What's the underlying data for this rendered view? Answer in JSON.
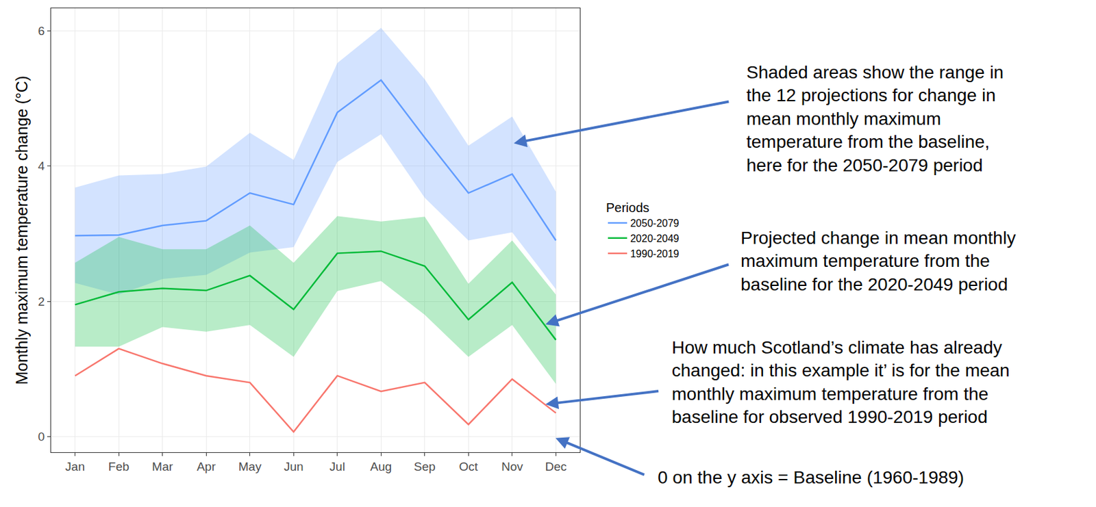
{
  "chart_data": {
    "type": "line",
    "y_label": "Monthly maximum temperature change (°C)",
    "legend_title": "Periods",
    "categories": [
      "Jan",
      "Feb",
      "Mar",
      "Apr",
      "May",
      "Jun",
      "Jul",
      "Aug",
      "Sep",
      "Oct",
      "Nov",
      "Dec"
    ],
    "ylim": [
      -0.23,
      6.33
    ],
    "yticks": [
      0,
      2,
      4,
      6
    ],
    "grid": true,
    "legend": "right",
    "series": [
      {
        "name": "1990-2019",
        "color": "#F8766D",
        "values": [
          0.9,
          1.3,
          1.08,
          0.9,
          0.8,
          0.07,
          0.9,
          0.67,
          0.8,
          0.18,
          0.85,
          0.35
        ]
      },
      {
        "name": "2020-2049",
        "color": "#00BA38",
        "values": [
          1.95,
          2.14,
          2.19,
          2.16,
          2.38,
          1.88,
          2.71,
          2.74,
          2.52,
          1.73,
          2.28,
          1.43
        ],
        "low": [
          1.33,
          1.33,
          1.62,
          1.55,
          1.65,
          1.18,
          2.15,
          2.3,
          1.8,
          1.18,
          1.65,
          0.78
        ],
        "high": [
          2.57,
          2.95,
          2.77,
          2.77,
          3.12,
          2.57,
          3.26,
          3.18,
          3.25,
          2.26,
          2.9,
          2.1
        ]
      },
      {
        "name": "2050-2079",
        "color": "#619CFF",
        "values": [
          2.97,
          2.98,
          3.12,
          3.19,
          3.6,
          3.43,
          4.79,
          5.27,
          4.42,
          3.6,
          3.88,
          2.9
        ],
        "low": [
          2.27,
          2.1,
          2.33,
          2.39,
          2.72,
          2.8,
          4.06,
          4.47,
          3.53,
          2.9,
          3.02,
          2.18
        ],
        "high": [
          3.68,
          3.86,
          3.88,
          3.99,
          4.49,
          4.09,
          5.52,
          6.04,
          5.28,
          4.3,
          4.73,
          3.62
        ]
      }
    ],
    "annotations": [
      {
        "text": [
          "Shaded areas show the range in",
          "the 12 projections for change in",
          "mean monthly maximum",
          "temperature from the baseline,",
          "here for the 2050-2079 period"
        ]
      },
      {
        "text": [
          "Projected change in mean monthly",
          "maximum temperature from the",
          "baseline for the 2020-2049 period"
        ]
      },
      {
        "text": [
          "How much Scotland’s climate has already",
          "changed: in this example it’ is for the mean",
          "monthly maximum temperature from the",
          "baseline for observed 1990-2019 period"
        ]
      },
      {
        "text": [
          "0 on the y axis = Baseline (1960-1989)"
        ]
      }
    ]
  }
}
